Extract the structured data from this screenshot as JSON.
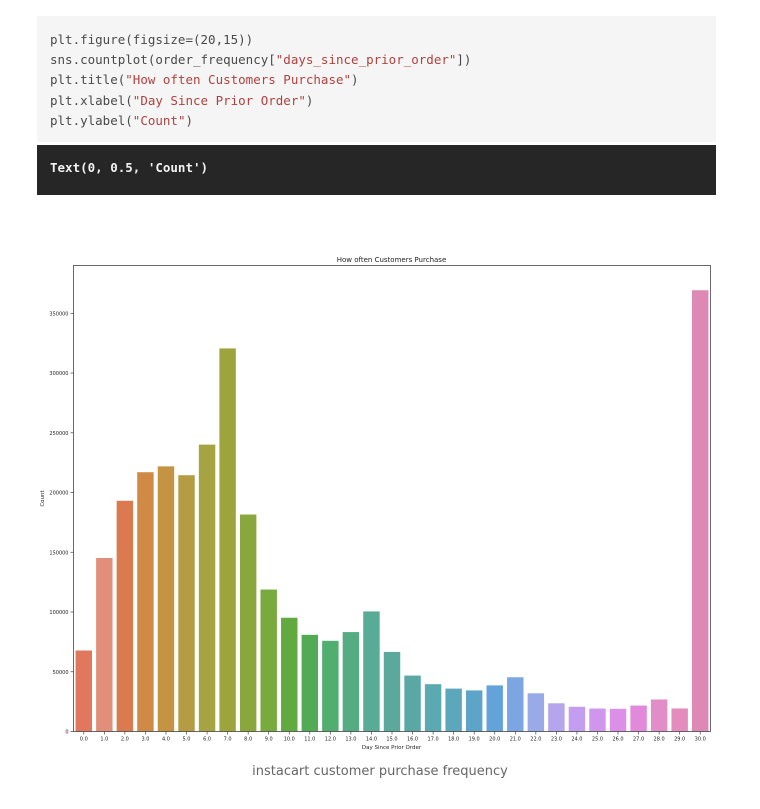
{
  "code_cell": {
    "lines": [
      {
        "parts": [
          {
            "t": "plt.figure(figsize=(20,15))"
          }
        ]
      },
      {
        "parts": [
          {
            "t": "sns.countplot(order_frequency["
          },
          {
            "t": "\"days_since_prior_order\"",
            "s": true
          },
          {
            "t": "])"
          }
        ]
      },
      {
        "parts": [
          {
            "t": "plt.title("
          },
          {
            "t": "\"How often Customers Purchase\"",
            "s": true
          },
          {
            "t": ")"
          }
        ]
      },
      {
        "parts": [
          {
            "t": "plt.xlabel("
          },
          {
            "t": "\"Day Since Prior Order\"",
            "s": true
          },
          {
            "t": ")"
          }
        ]
      },
      {
        "parts": [
          {
            "t": "plt.ylabel("
          },
          {
            "t": "\"Count\"",
            "s": true
          },
          {
            "t": ")"
          }
        ]
      }
    ]
  },
  "output_cell": {
    "text": "Text(0, 0.5, 'Count')"
  },
  "caption": "instacart customer purchase frequency",
  "chart_data": {
    "type": "bar",
    "title": "How often Customers Purchase",
    "xlabel": "Day Since Prior Order",
    "ylabel": "Count",
    "ylim": [
      0,
      390000
    ],
    "yticks": [
      0,
      50000,
      100000,
      150000,
      200000,
      250000,
      300000,
      350000
    ],
    "ytick_labels": [
      "0",
      "50000",
      "100000",
      "150000",
      "200000",
      "250000",
      "300000",
      "350000"
    ],
    "categories": [
      "0.0",
      "1.0",
      "2.0",
      "3.0",
      "4.0",
      "5.0",
      "6.0",
      "7.0",
      "8.0",
      "9.0",
      "10.0",
      "11.0",
      "12.0",
      "13.0",
      "14.0",
      "15.0",
      "16.0",
      "17.0",
      "18.0",
      "19.0",
      "20.0",
      "21.0",
      "22.0",
      "23.0",
      "24.0",
      "25.0",
      "26.0",
      "27.0",
      "28.0",
      "29.0",
      "30.0"
    ],
    "values": [
      67800,
      145200,
      193100,
      217000,
      221900,
      214500,
      240100,
      320600,
      181600,
      118800,
      95200,
      80900,
      75900,
      83200,
      100500,
      66600,
      46800,
      39600,
      35900,
      34400,
      38600,
      45400,
      32000,
      23600,
      20700,
      19200,
      19000,
      21700,
      26800,
      19300,
      369300
    ],
    "colors": [
      "#e1785d",
      "#e28e7a",
      "#db7a4f",
      "#d18a45",
      "#c59443",
      "#b59c42",
      "#a6a442",
      "#9ea43c",
      "#8aa73d",
      "#79aa3e",
      "#62aa3f",
      "#51ab55",
      "#50ae6f",
      "#55ab82",
      "#58ab95",
      "#5aa99c",
      "#5aa8a6",
      "#5ba9b1",
      "#5ca7bb",
      "#5da5c8",
      "#64a3d9",
      "#7ba6e1",
      "#9aaae8",
      "#b5a5ed",
      "#c39ef0",
      "#d096ee",
      "#dc8fe6",
      "#e08ad9",
      "#e18dc8",
      "#e38cbd",
      "#de88b6"
    ]
  }
}
